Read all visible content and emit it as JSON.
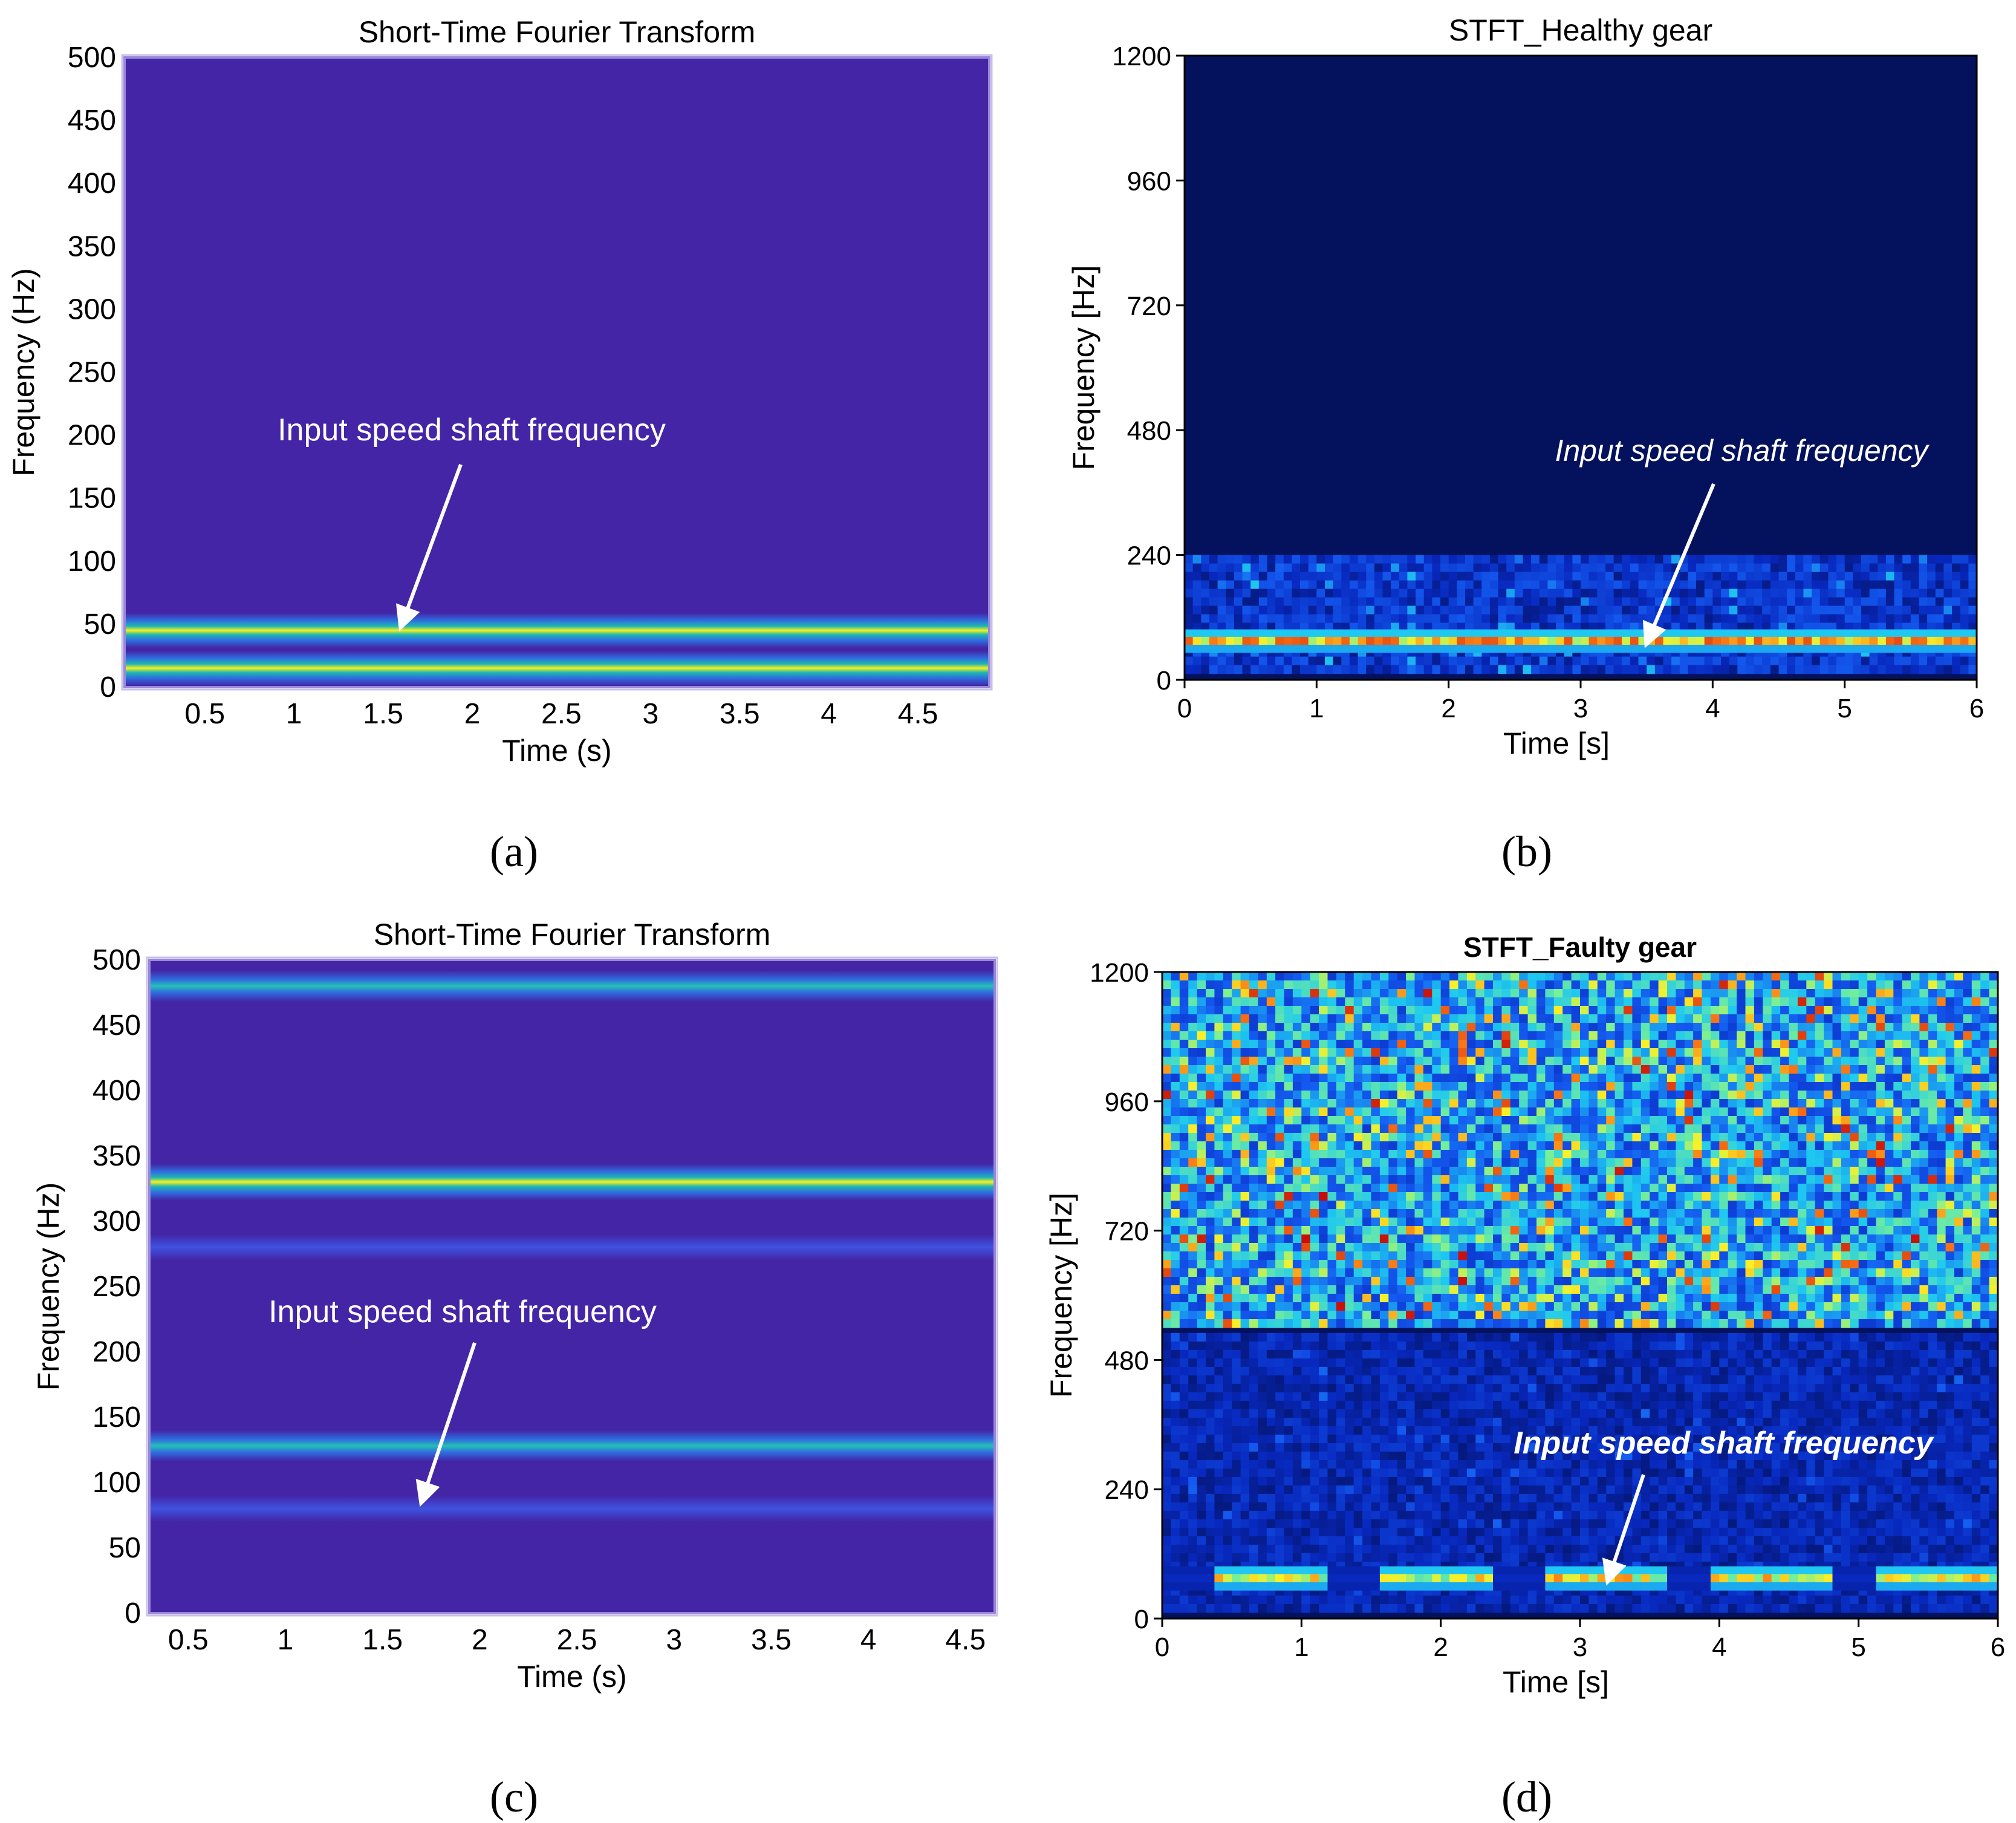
{
  "colors": {
    "parula_bg": "#4325a6",
    "jet_bg": "#04125e",
    "annotation": "#ffffff"
  },
  "panel_labels": [
    "(a)",
    "(b)",
    "(c)",
    "(d)"
  ],
  "chart_data": [
    {
      "id": "a",
      "type": "heatmap",
      "colormap": "parula",
      "title": "Short-Time Fourier Transform",
      "xlabel": "Time (s)",
      "ylabel": "Frequency (Hz)",
      "xlim": [
        0.05,
        4.9
      ],
      "ylim": [
        0,
        500
      ],
      "xticks": [
        0.5,
        1,
        1.5,
        2,
        2.5,
        3,
        3.5,
        4,
        4.5
      ],
      "yticks": [
        0,
        50,
        100,
        150,
        200,
        250,
        300,
        350,
        400,
        450,
        500
      ],
      "bands": [
        {
          "freq": 15,
          "intensity": 1.0,
          "width_hz": 14
        },
        {
          "freq": 45,
          "intensity": 1.0,
          "width_hz": 14
        }
      ],
      "annotation": {
        "text": "Input speed shaft frequency",
        "time": 1.6,
        "freq": 48
      }
    },
    {
      "id": "b",
      "type": "heatmap",
      "colormap": "jet",
      "title": "STFT_Healthy gear",
      "xlabel": "Time [s]",
      "ylabel": "Frequency [Hz]",
      "xlim": [
        0,
        6
      ],
      "ylim": [
        0,
        1200
      ],
      "xticks": [
        0,
        1,
        2,
        3,
        4,
        5,
        6
      ],
      "yticks": [
        0,
        240,
        480,
        720,
        960,
        1200
      ],
      "bands": [
        {
          "freq": 75,
          "intensity": 0.68,
          "width_hz": 22
        }
      ],
      "noise_region": [
        0,
        240
      ],
      "annotation": {
        "text": "Input speed shaft frequency",
        "time": 3.5,
        "freq": 70
      }
    },
    {
      "id": "c",
      "type": "heatmap",
      "colormap": "parula",
      "title": "Short-Time Fourier Transform",
      "xlabel": "Time (s)",
      "ylabel": "Frequency (Hz)",
      "xlim": [
        0.3,
        4.65
      ],
      "ylim": [
        0,
        500
      ],
      "xticks": [
        0.5,
        1,
        1.5,
        2,
        2.5,
        3,
        3.5,
        4,
        4.5
      ],
      "yticks": [
        0,
        50,
        100,
        150,
        200,
        250,
        300,
        350,
        400,
        450,
        500
      ],
      "bands": [
        {
          "freq": 80,
          "intensity": 0.25,
          "width_hz": 10
        },
        {
          "freq": 128,
          "intensity": 0.5,
          "width_hz": 12
        },
        {
          "freq": 280,
          "intensity": 0.22,
          "width_hz": 10
        },
        {
          "freq": 330,
          "intensity": 0.95,
          "width_hz": 14
        },
        {
          "freq": 480,
          "intensity": 0.5,
          "width_hz": 12
        }
      ],
      "annotation": {
        "text": "Input speed shaft frequency",
        "time": 1.7,
        "freq": 85
      }
    },
    {
      "id": "d",
      "type": "heatmap",
      "colormap": "jet",
      "title": "STFT_Faulty gear",
      "xlabel": "Time [s]",
      "ylabel": "Frequency [Hz]",
      "xlim": [
        0,
        6
      ],
      "ylim": [
        0,
        1200
      ],
      "xticks": [
        0,
        1,
        2,
        3,
        4,
        5,
        6
      ],
      "yticks": [
        0,
        240,
        480,
        720,
        960,
        1200
      ],
      "bands": [
        {
          "freq": 75,
          "intensity": 0.6,
          "width_hz": 22
        }
      ],
      "noise_region": [
        530,
        1200
      ],
      "annotation": {
        "text": "Input speed shaft frequency",
        "time": 3.2,
        "freq": 70
      }
    }
  ]
}
